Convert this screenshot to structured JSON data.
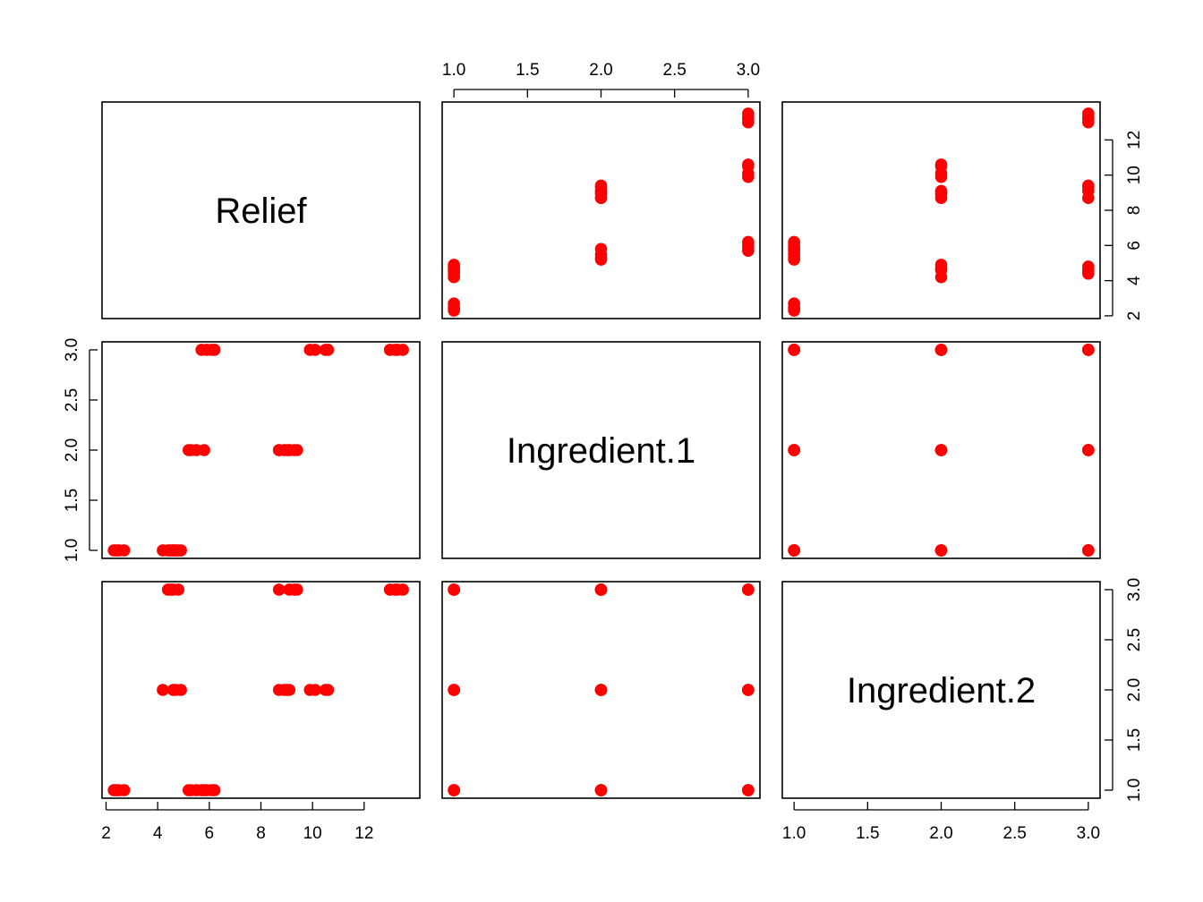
{
  "chart_data": {
    "type": "scatter",
    "plot_kind": "scatterplot matrix",
    "variables": [
      "Relief",
      "Ingredient.1",
      "Ingredient.2"
    ],
    "point_color": "#ff0000",
    "frame_color": "#000000",
    "background": "#ffffff",
    "grid": false,
    "axes": {
      "Relief": {
        "range": [
          2.3,
          13.7
        ],
        "ticks": [
          2,
          4,
          6,
          8,
          10,
          12
        ],
        "tick_labels": [
          "2",
          "4",
          "6",
          "8",
          "10",
          "12"
        ]
      },
      "Ingredient.1": {
        "range": [
          1,
          3
        ],
        "ticks": [
          1,
          1.5,
          2,
          2.5,
          3
        ],
        "tick_labels": [
          "1.0",
          "1.5",
          "2.0",
          "2.5",
          "3.0"
        ]
      },
      "Ingredient.2": {
        "range": [
          1,
          3
        ],
        "ticks": [
          1,
          1.5,
          2,
          2.5,
          3
        ],
        "tick_labels": [
          "1.0",
          "1.5",
          "2.0",
          "2.5",
          "3.0"
        ]
      }
    },
    "observations": [
      {
        "Relief": 2.4,
        "Ingredient.1": 1,
        "Ingredient.2": 1
      },
      {
        "Relief": 2.7,
        "Ingredient.1": 1,
        "Ingredient.2": 1
      },
      {
        "Relief": 2.3,
        "Ingredient.1": 1,
        "Ingredient.2": 1
      },
      {
        "Relief": 2.5,
        "Ingredient.1": 1,
        "Ingredient.2": 1
      },
      {
        "Relief": 4.6,
        "Ingredient.1": 1,
        "Ingredient.2": 2
      },
      {
        "Relief": 4.2,
        "Ingredient.1": 1,
        "Ingredient.2": 2
      },
      {
        "Relief": 4.9,
        "Ingredient.1": 1,
        "Ingredient.2": 2
      },
      {
        "Relief": 4.7,
        "Ingredient.1": 1,
        "Ingredient.2": 2
      },
      {
        "Relief": 4.8,
        "Ingredient.1": 1,
        "Ingredient.2": 3
      },
      {
        "Relief": 4.5,
        "Ingredient.1": 1,
        "Ingredient.2": 3
      },
      {
        "Relief": 4.4,
        "Ingredient.1": 1,
        "Ingredient.2": 3
      },
      {
        "Relief": 4.6,
        "Ingredient.1": 1,
        "Ingredient.2": 3
      },
      {
        "Relief": 5.8,
        "Ingredient.1": 2,
        "Ingredient.2": 1
      },
      {
        "Relief": 5.2,
        "Ingredient.1": 2,
        "Ingredient.2": 1
      },
      {
        "Relief": 5.5,
        "Ingredient.1": 2,
        "Ingredient.2": 1
      },
      {
        "Relief": 5.3,
        "Ingredient.1": 2,
        "Ingredient.2": 1
      },
      {
        "Relief": 8.9,
        "Ingredient.1": 2,
        "Ingredient.2": 2
      },
      {
        "Relief": 9.1,
        "Ingredient.1": 2,
        "Ingredient.2": 2
      },
      {
        "Relief": 8.7,
        "Ingredient.1": 2,
        "Ingredient.2": 2
      },
      {
        "Relief": 9.0,
        "Ingredient.1": 2,
        "Ingredient.2": 2
      },
      {
        "Relief": 9.1,
        "Ingredient.1": 2,
        "Ingredient.2": 3
      },
      {
        "Relief": 9.3,
        "Ingredient.1": 2,
        "Ingredient.2": 3
      },
      {
        "Relief": 8.7,
        "Ingredient.1": 2,
        "Ingredient.2": 3
      },
      {
        "Relief": 9.4,
        "Ingredient.1": 2,
        "Ingredient.2": 3
      },
      {
        "Relief": 6.1,
        "Ingredient.1": 3,
        "Ingredient.2": 1
      },
      {
        "Relief": 5.7,
        "Ingredient.1": 3,
        "Ingredient.2": 1
      },
      {
        "Relief": 5.9,
        "Ingredient.1": 3,
        "Ingredient.2": 1
      },
      {
        "Relief": 6.2,
        "Ingredient.1": 3,
        "Ingredient.2": 1
      },
      {
        "Relief": 9.9,
        "Ingredient.1": 3,
        "Ingredient.2": 2
      },
      {
        "Relief": 10.5,
        "Ingredient.1": 3,
        "Ingredient.2": 2
      },
      {
        "Relief": 10.6,
        "Ingredient.1": 3,
        "Ingredient.2": 2
      },
      {
        "Relief": 10.1,
        "Ingredient.1": 3,
        "Ingredient.2": 2
      },
      {
        "Relief": 13.5,
        "Ingredient.1": 3,
        "Ingredient.2": 3
      },
      {
        "Relief": 13.0,
        "Ingredient.1": 3,
        "Ingredient.2": 3
      },
      {
        "Relief": 13.3,
        "Ingredient.1": 3,
        "Ingredient.2": 3
      },
      {
        "Relief": 13.2,
        "Ingredient.1": 3,
        "Ingredient.2": 3
      }
    ]
  }
}
